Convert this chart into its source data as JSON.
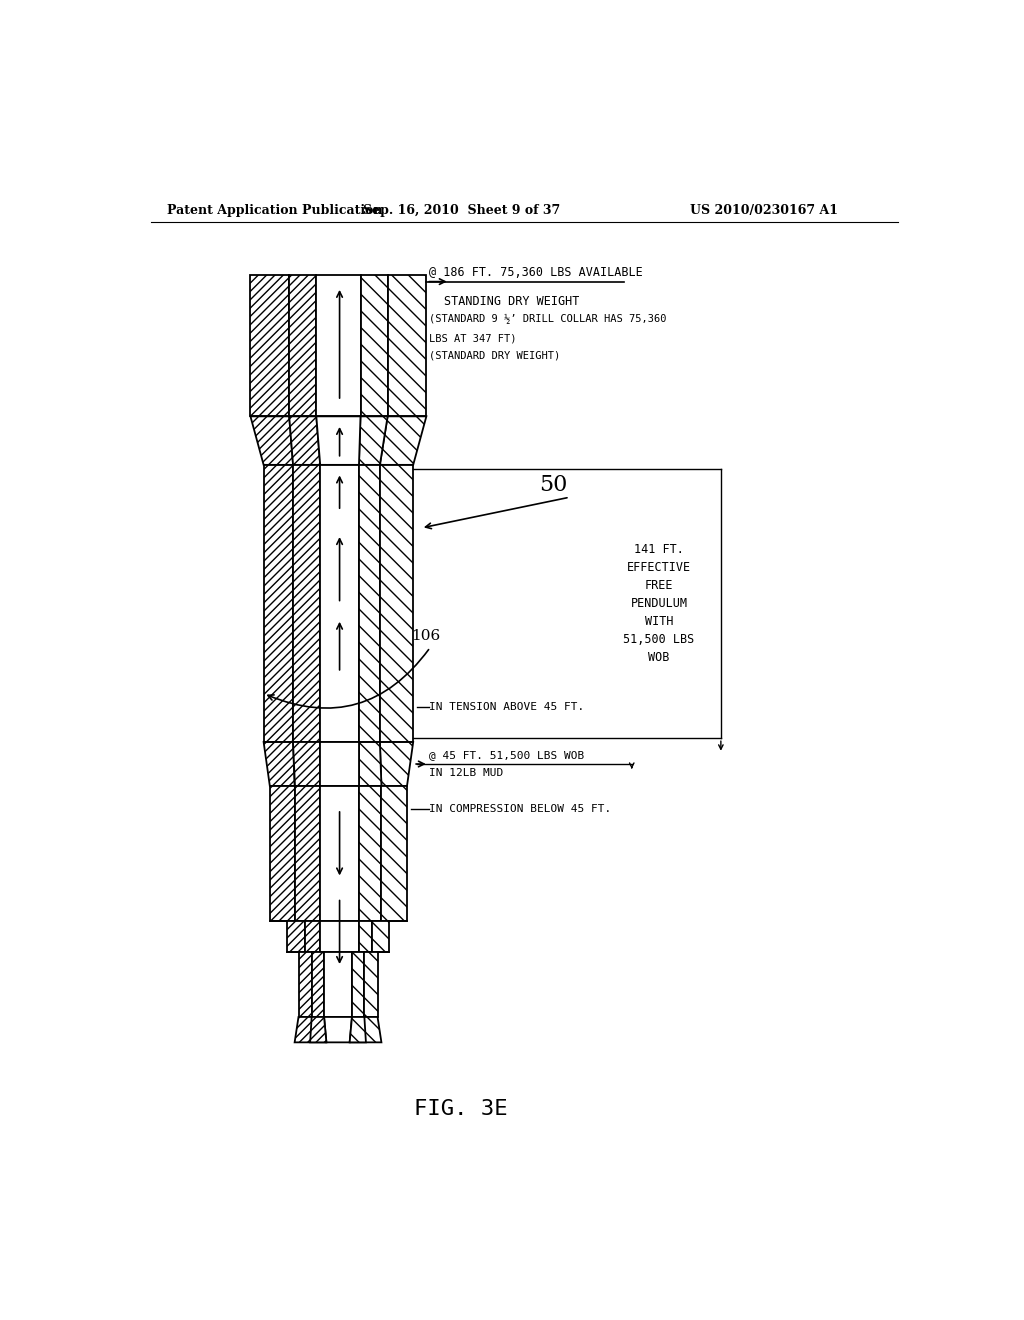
{
  "header_left": "Patent Application Publication",
  "header_mid": "Sep. 16, 2010  Sheet 9 of 37",
  "header_right": "US 2010/0230167 A1",
  "figure_label": "FIG. 3E",
  "label_50": "50",
  "label_106": "106",
  "annotation_top_line1": "@ 186 FT. 75,360 LBS AVAILABLE",
  "annotation_top_line2": "STANDING DRY WEIGHT",
  "annotation_top_sub1": "(STANDARD 9 ½’ DRILL COLLAR HAS 75,360",
  "annotation_top_sub2": "LBS AT 347 FT)",
  "annotation_top_sub3": "(STANDARD DRY WEIGHT)",
  "annotation_right": "141 FT.\nEFFECTIVE\nFREE\nPENDULUM\nWITH\n51,500 LBS\nWOB",
  "annotation_tension": "IN TENSION ABOVE 45 FT.",
  "annotation_45ft_line1": "@ 45 FT. 51,500 LBS WOB",
  "annotation_45ft_line2": "IN 12LB MUD",
  "annotation_compression": "IN COMPRESSION BELOW 45 FT.",
  "bg_color": "#ffffff",
  "line_color": "#000000"
}
